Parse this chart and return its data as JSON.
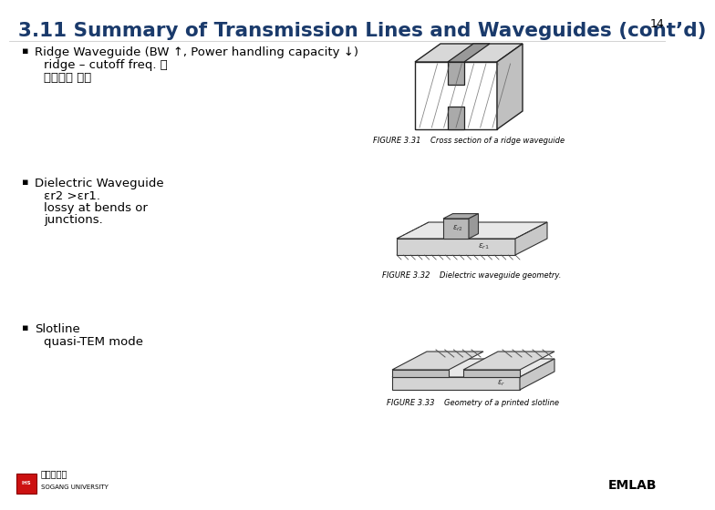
{
  "title": "3.11 Summary of Transmission Lines and Waveguides (cont’d)",
  "page_number": "14",
  "background_color": "#ffffff",
  "title_color": "#1a3a6b",
  "title_fontsize": 15.5,
  "page_num_fontsize": 9,
  "bullet_color": "#000000",
  "bullet_fontsize": 9.5,
  "sub_fontsize": 9.5,
  "fig_label_fontsize": 6,
  "bullet_items": [
    {
      "header": "Ridge Waveguide (BW ↑, Power handling capacity ↓)",
      "sub_lines": [
        "ridge – cutoff freq. 를",
        "낙취주는 역할"
      ],
      "figure_label": "FIGURE 3.31",
      "figure_caption": "Cross section of a ridge waveguide"
    },
    {
      "header": "Dielectric Waveguide",
      "sub_lines": [
        "εr2 >εr1.",
        "lossy at bends or",
        "junctions."
      ],
      "figure_label": "FIGURE 3.32",
      "figure_caption": "Dielectric waveguide geometry."
    },
    {
      "header": "Slotline",
      "sub_lines": [
        "quasi-TEM mode"
      ],
      "figure_label": "FIGURE 3.33",
      "figure_caption": "Geometry of a printed slotline"
    }
  ],
  "footer_text": "EMLAB",
  "footer_color": "#000000",
  "footer_fontsize": 10,
  "univ_name": "서강대학교",
  "univ_eng": "SOGANG UNIVERSITY"
}
